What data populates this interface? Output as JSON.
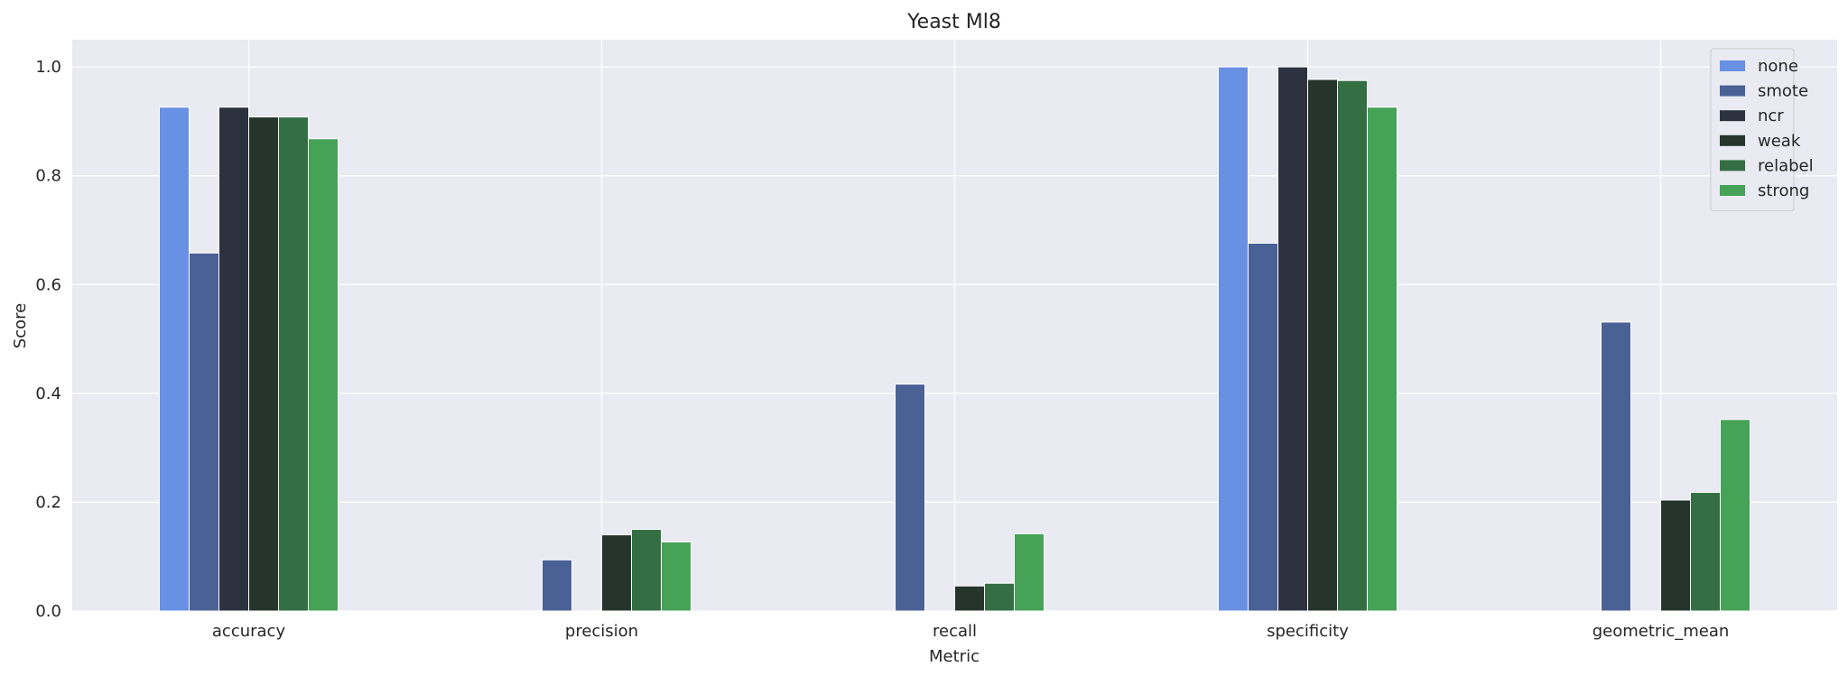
{
  "chart_data": {
    "type": "bar",
    "title": "Yeast Ml8",
    "xlabel": "Metric",
    "ylabel": "Score",
    "categories": [
      "accuracy",
      "precision",
      "recall",
      "specificity",
      "geometric_mean"
    ],
    "ylim": [
      0,
      1.05
    ],
    "yticks": [
      "0.0",
      "0.2",
      "0.4",
      "0.6",
      "0.8",
      "1.0"
    ],
    "grid": true,
    "legend_position": "top-right",
    "series": [
      {
        "name": "none",
        "color": "#6890e3",
        "values": [
          0.926,
          0.0,
          0.0,
          1.0,
          0.0
        ]
      },
      {
        "name": "smote",
        "color": "#4a6196",
        "values": [
          0.658,
          0.094,
          0.417,
          0.676,
          0.531
        ]
      },
      {
        "name": "ncr",
        "color": "#2c3240",
        "values": [
          0.926,
          0.0,
          0.0,
          1.0,
          0.0
        ]
      },
      {
        "name": "weak",
        "color": "#26352b",
        "values": [
          0.908,
          0.14,
          0.046,
          0.977,
          0.204
        ]
      },
      {
        "name": "relabel",
        "color": "#346e43",
        "values": [
          0.908,
          0.15,
          0.051,
          0.975,
          0.218
        ]
      },
      {
        "name": "strong",
        "color": "#46a257",
        "values": [
          0.868,
          0.127,
          0.142,
          0.926,
          0.352
        ]
      }
    ]
  }
}
